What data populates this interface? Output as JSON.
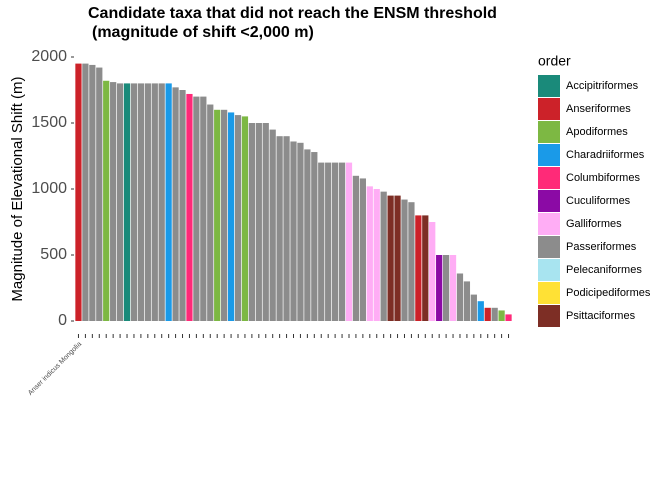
{
  "chart_data": {
    "type": "bar",
    "title": "Candidate taxa that did not reach the ENSM threshold",
    "subtitle": "(magnitude of shift <2,000 m)",
    "y_label": "Magnitude of Elevational Shift (m)",
    "ylim": [
      0,
      2000
    ],
    "yticks": [
      0,
      500,
      1000,
      1500,
      2000
    ],
    "grid": false,
    "categories": [
      "Anser indicus Mongolia",
      null,
      null,
      null,
      null,
      null,
      null,
      null,
      null,
      null,
      null,
      null,
      null,
      null,
      null,
      null,
      null,
      null,
      null,
      null,
      null,
      null,
      null,
      null,
      null,
      null,
      null,
      null,
      null,
      null,
      null,
      null,
      null,
      null,
      null,
      null,
      null,
      null,
      null,
      null,
      null,
      null,
      null,
      null,
      null,
      null,
      null,
      null,
      null,
      null,
      null,
      null,
      null,
      null,
      null,
      null,
      null,
      null,
      null,
      null,
      null,
      null,
      null
    ],
    "values": [
      1950,
      1950,
      1940,
      1920,
      1820,
      1810,
      1800,
      1800,
      1800,
      1800,
      1800,
      1800,
      1800,
      1800,
      1770,
      1750,
      1720,
      1700,
      1700,
      1640,
      1600,
      1600,
      1580,
      1560,
      1550,
      1500,
      1500,
      1500,
      1450,
      1400,
      1400,
      1360,
      1350,
      1300,
      1280,
      1200,
      1200,
      1200,
      1200,
      1200,
      1100,
      1080,
      1020,
      1000,
      980,
      950,
      950,
      920,
      900,
      800,
      800,
      750,
      500,
      500,
      500,
      360,
      300,
      200,
      150,
      100,
      100,
      80,
      50
    ],
    "colors": [
      "#cc2229",
      "#8c8c8c",
      "#8c8c8c",
      "#8c8c8c",
      "#7db843",
      "#8c8c8c",
      "#8c8c8c",
      "#1a8a7a",
      "#8c8c8c",
      "#8c8c8c",
      "#8c8c8c",
      "#8c8c8c",
      "#8c8c8c",
      "#1a9ae8",
      "#8c8c8c",
      "#8c8c8c",
      "#ff2a78",
      "#8c8c8c",
      "#8c8c8c",
      "#8c8c8c",
      "#7db843",
      "#8c8c8c",
      "#1a9ae8",
      "#8c8c8c",
      "#7db843",
      "#8c8c8c",
      "#8c8c8c",
      "#8c8c8c",
      "#8c8c8c",
      "#8c8c8c",
      "#8c8c8c",
      "#8c8c8c",
      "#8c8c8c",
      "#8c8c8c",
      "#8c8c8c",
      "#8c8c8c",
      "#8c8c8c",
      "#8c8c8c",
      "#8c8c8c",
      "#ffadf5",
      "#8c8c8c",
      "#8c8c8c",
      "#ffadf5",
      "#ffadf5",
      "#8c8c8c",
      "#7d2e25",
      "#7d2e25",
      "#8c8c8c",
      "#8c8c8c",
      "#cc2229",
      "#7d2e25",
      "#ffadf5",
      "#8b0aa5",
      "#8c8c8c",
      "#ffadf5",
      "#8c8c8c",
      "#8c8c8c",
      "#8c8c8c",
      "#1a9ae8",
      "#cc2229",
      "#8c8c8c",
      "#7db843",
      "#ff2a78"
    ],
    "legend_title": "order",
    "legend": [
      {
        "name": "Accipitriformes",
        "color": "#1a8a7a"
      },
      {
        "name": "Anseriformes",
        "color": "#cc2229"
      },
      {
        "name": "Apodiformes",
        "color": "#7db843"
      },
      {
        "name": "Charadriiformes",
        "color": "#1a9ae8"
      },
      {
        "name": "Columbiformes",
        "color": "#ff2a78"
      },
      {
        "name": "Cuculiformes",
        "color": "#8b0aa5"
      },
      {
        "name": "Galliformes",
        "color": "#ffadf5"
      },
      {
        "name": "Passeriformes",
        "color": "#8c8c8c"
      },
      {
        "name": "Pelecaniformes",
        "color": "#a8e4f0"
      },
      {
        "name": "Podicipediformes",
        "color": "#ffe135"
      },
      {
        "name": "Psittaciformes",
        "color": "#7d2e25"
      }
    ]
  }
}
